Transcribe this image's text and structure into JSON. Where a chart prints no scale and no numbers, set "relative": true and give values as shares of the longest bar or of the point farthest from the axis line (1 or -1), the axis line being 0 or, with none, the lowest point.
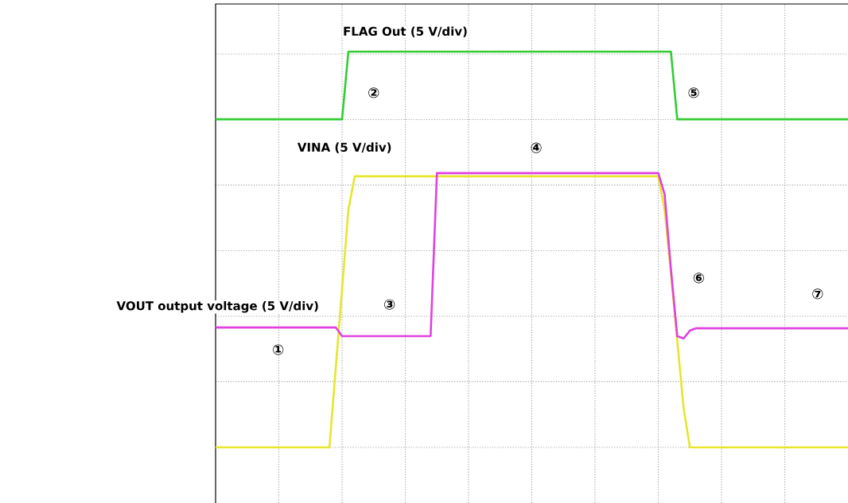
{
  "chart_data": {
    "type": "line",
    "relative": true,
    "grid": true,
    "categories": [
      null,
      null,
      null,
      null,
      null,
      null,
      null,
      null,
      null,
      null,
      null,
      null,
      null,
      null,
      null,
      null,
      null,
      null,
      null,
      null,
      null,
      null,
      null,
      null,
      null,
      null,
      null,
      null,
      null,
      null,
      null,
      null,
      null,
      null,
      null,
      null,
      null,
      null,
      null,
      null,
      null,
      null,
      null,
      null,
      null,
      null,
      null,
      null,
      null,
      null,
      null,
      null,
      null,
      null,
      null,
      null,
      null,
      null,
      null,
      null,
      null,
      null,
      null,
      null,
      null,
      null,
      null,
      null,
      null,
      null,
      null,
      null,
      null,
      null,
      null,
      null,
      null,
      null,
      null,
      null,
      null,
      null,
      null,
      null,
      null,
      null,
      null,
      null,
      null,
      null,
      null,
      null,
      null,
      null,
      null,
      null,
      null,
      null,
      null,
      null,
      null
    ],
    "series": [
      {
        "name": "VINA (5 V/div)",
        "color": "#e6e62e",
        "values": [
          0,
          0,
          0,
          0,
          0,
          0,
          0,
          0,
          0,
          0,
          0,
          0,
          0,
          0,
          0,
          0,
          0,
          0,
          0,
          0.2,
          0.4,
          0.6,
          0.685,
          0.685,
          0.685,
          0.685,
          0.685,
          0.685,
          0.685,
          0.685,
          0.685,
          0.685,
          0.685,
          0.685,
          0.685,
          0.685,
          0.685,
          0.685,
          0.685,
          0.685,
          0.685,
          0.685,
          0.685,
          0.685,
          0.685,
          0.685,
          0.685,
          0.685,
          0.685,
          0.685,
          0.685,
          0.685,
          0.685,
          0.685,
          0.685,
          0.685,
          0.685,
          0.685,
          0.685,
          0.685,
          0.685,
          0.685,
          0.685,
          0.685,
          0.685,
          0.685,
          0.685,
          0.685,
          0.685,
          0.685,
          0.685,
          0.6,
          0.44,
          0.27,
          0.1,
          0,
          0,
          0,
          0,
          0,
          0,
          0,
          0,
          0,
          0,
          0,
          0,
          0,
          0,
          0,
          0,
          0,
          0,
          0,
          0,
          0,
          0,
          0,
          0,
          0,
          0
        ]
      },
      {
        "name": "VOUT output voltage (5 V/div)",
        "color": "#e040e0",
        "values": [
          0.303,
          0.303,
          0.303,
          0.303,
          0.303,
          0.303,
          0.303,
          0.303,
          0.303,
          0.303,
          0.303,
          0.303,
          0.303,
          0.303,
          0.303,
          0.303,
          0.303,
          0.303,
          0.303,
          0.303,
          0.281,
          0.281,
          0.281,
          0.281,
          0.281,
          0.281,
          0.281,
          0.281,
          0.281,
          0.281,
          0.281,
          0.281,
          0.281,
          0.281,
          0.281,
          0.693,
          0.693,
          0.693,
          0.693,
          0.693,
          0.693,
          0.693,
          0.693,
          0.693,
          0.693,
          0.693,
          0.693,
          0.693,
          0.693,
          0.693,
          0.693,
          0.693,
          0.693,
          0.693,
          0.693,
          0.693,
          0.693,
          0.693,
          0.693,
          0.693,
          0.693,
          0.693,
          0.693,
          0.693,
          0.693,
          0.693,
          0.693,
          0.693,
          0.693,
          0.693,
          0.693,
          0.64,
          0.45,
          0.281,
          0.275,
          0.295,
          0.301,
          0.301,
          0.301,
          0.301,
          0.301,
          0.301,
          0.301,
          0.301,
          0.301,
          0.301,
          0.301,
          0.301,
          0.301,
          0.301,
          0.301,
          0.301,
          0.301,
          0.301,
          0.301,
          0.301,
          0.301,
          0.301,
          0.301,
          0.301,
          0.301
        ]
      },
      {
        "name": "FLAG Out (5 V/div)",
        "color": "#33cc33",
        "values": [
          0.829,
          0.829,
          0.829,
          0.829,
          0.829,
          0.829,
          0.829,
          0.829,
          0.829,
          0.829,
          0.829,
          0.829,
          0.829,
          0.829,
          0.829,
          0.829,
          0.829,
          0.829,
          0.829,
          0.829,
          0.829,
          1,
          1,
          1,
          1,
          1,
          1,
          1,
          1,
          1,
          1,
          1,
          1,
          1,
          1,
          1,
          1,
          1,
          1,
          1,
          1,
          1,
          1,
          1,
          1,
          1,
          1,
          1,
          1,
          1,
          1,
          1,
          1,
          1,
          1,
          1,
          1,
          1,
          1,
          1,
          1,
          1,
          1,
          1,
          1,
          1,
          1,
          1,
          1,
          1,
          1,
          1,
          1,
          0.829,
          0.829,
          0.829,
          0.829,
          0.829,
          0.829,
          0.829,
          0.829,
          0.829,
          0.829,
          0.829,
          0.829,
          0.829,
          0.829,
          0.829,
          0.829,
          0.829,
          0.829,
          0.829,
          0.829,
          0.829,
          0.829,
          0.829,
          0.829,
          0.829,
          0.829,
          0.829,
          0.829
        ]
      }
    ],
    "annotations": [
      "①",
      "②",
      "③",
      "④",
      "⑤",
      "⑥",
      "⑦"
    ]
  }
}
